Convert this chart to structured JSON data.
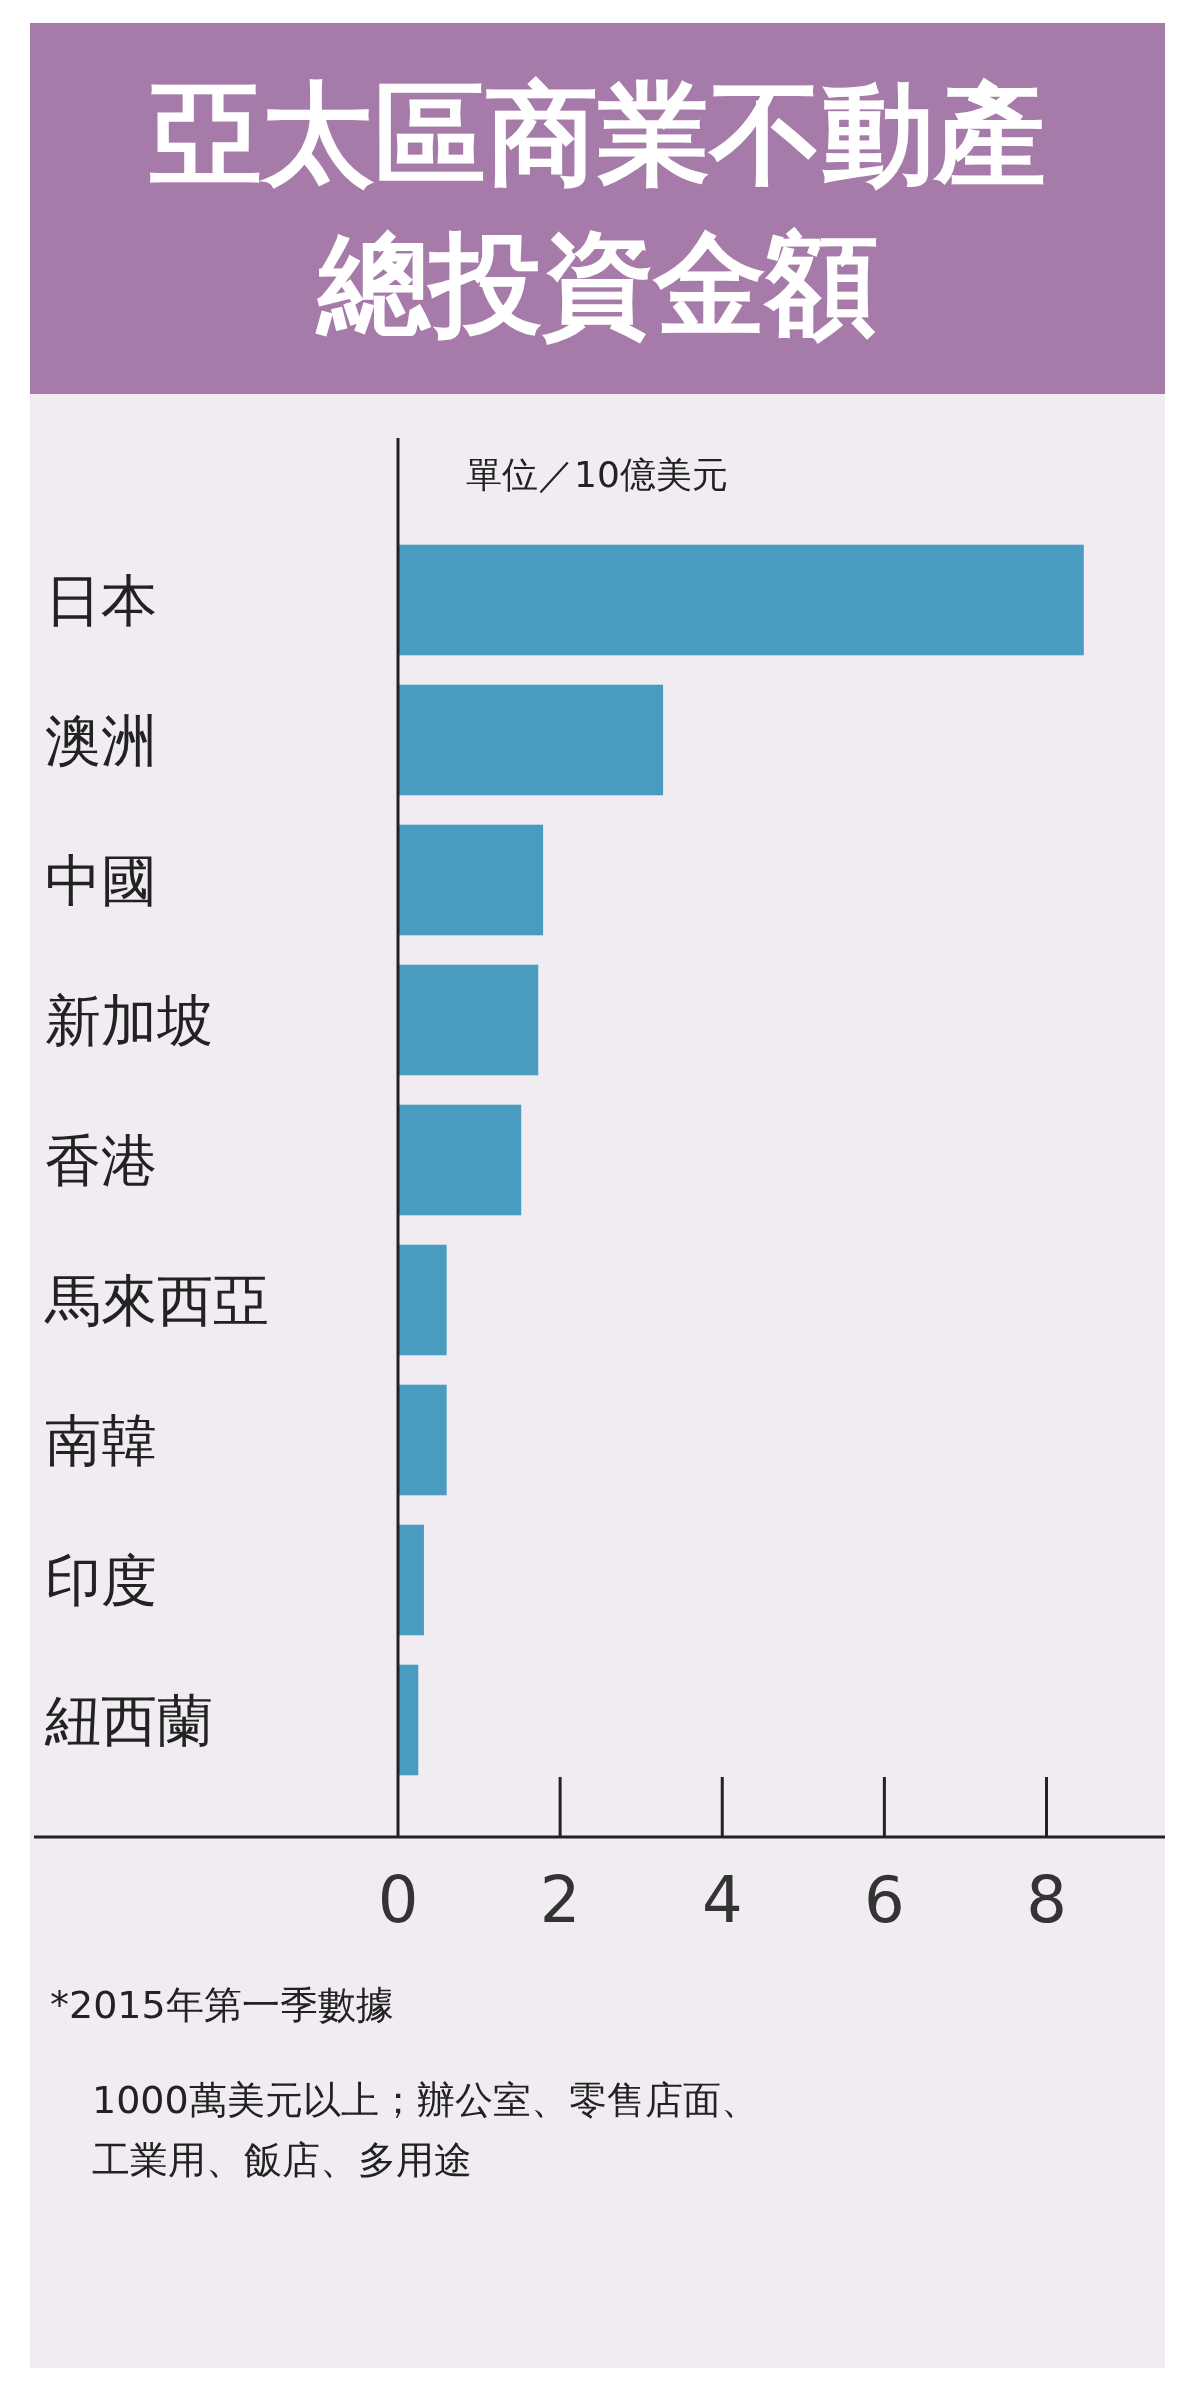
{
  "chart_data": {
    "type": "bar",
    "orientation": "horizontal",
    "title": "亞太區商業不動產總投資金額",
    "categories": [
      "日本",
      "澳洲",
      "中國",
      "新加坡",
      "香港",
      "馬來西亞",
      "南韓",
      "印度",
      "紐西蘭"
    ],
    "values": [
      8.46,
      3.27,
      1.79,
      1.73,
      1.52,
      0.6,
      0.6,
      0.32,
      0.25
    ],
    "color": "#4a9bc0",
    "xlim": [
      0,
      9.4
    ],
    "xticks": [
      0,
      2,
      4,
      6,
      8
    ],
    "grid": false,
    "annotations": [
      "單位／10億美元",
      "*2015年第一季數據",
      "1000萬美元以上；辦公室、零售店面、工業用、飯店、多用途"
    ]
  }
}
